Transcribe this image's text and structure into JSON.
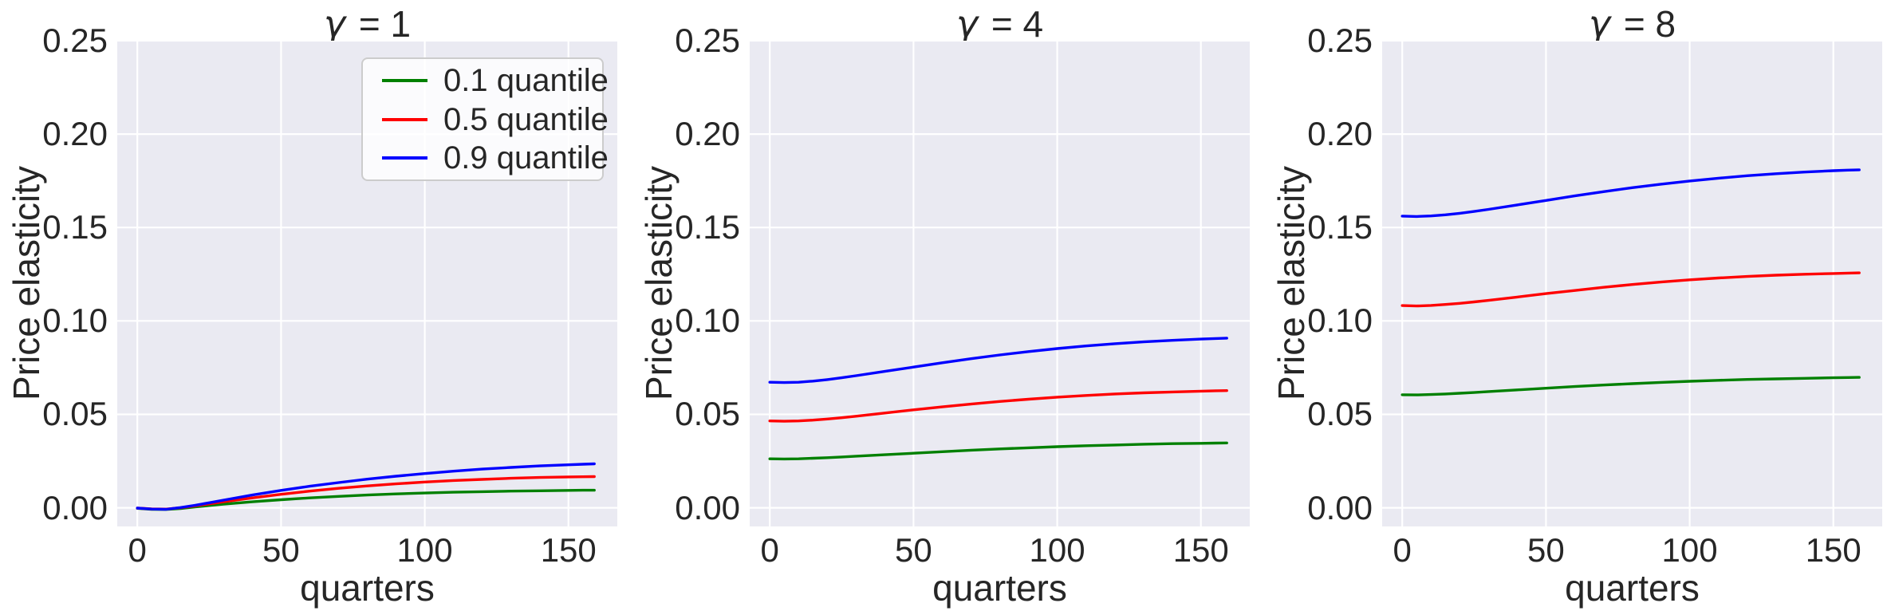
{
  "figure": {
    "background": "#ffffff",
    "plot_background": "#eaeaf2",
    "grid_color": "#ffffff",
    "text_color": "#262626"
  },
  "chart_data": [
    {
      "type": "line",
      "title": "γ = 1",
      "xlabel": "quarters",
      "ylabel": "Price elasticity",
      "xlim": [
        -7,
        167
      ],
      "ylim": [
        -0.01,
        0.25
      ],
      "grid": true,
      "xticks": [
        0,
        50,
        100,
        150
      ],
      "xtick_labels": [
        "0",
        "50",
        "100",
        "150"
      ],
      "yticks": [
        0.0,
        0.05,
        0.1,
        0.15,
        0.2,
        0.25
      ],
      "ytick_labels": [
        "0.00",
        "0.05",
        "0.10",
        "0.15",
        "0.20",
        "0.25"
      ],
      "legend": {
        "visible": true,
        "position": "upper right"
      },
      "x": [
        0,
        5,
        10,
        15,
        20,
        25,
        30,
        40,
        50,
        60,
        70,
        80,
        90,
        100,
        110,
        120,
        130,
        140,
        150,
        155,
        159
      ],
      "series": [
        {
          "name": "0.1 quantile",
          "color": "#008000",
          "values": [
            -0.0003,
            -0.0008,
            -0.0009,
            -0.0004,
            0.0004,
            0.0012,
            0.0019,
            0.0032,
            0.0043,
            0.0053,
            0.0061,
            0.0068,
            0.0074,
            0.0079,
            0.0083,
            0.0086,
            0.0089,
            0.0091,
            0.0093,
            0.0094,
            0.0094
          ]
        },
        {
          "name": "0.5 quantile",
          "color": "#ff0000",
          "values": [
            -0.0002,
            -0.0006,
            -0.0007,
            0.0,
            0.001,
            0.0021,
            0.0032,
            0.0053,
            0.0072,
            0.0089,
            0.0104,
            0.0117,
            0.0128,
            0.0138,
            0.0146,
            0.0152,
            0.0158,
            0.0162,
            0.0165,
            0.0166,
            0.0167
          ]
        },
        {
          "name": "0.9 quantile",
          "color": "#0000ff",
          "values": [
            -0.0002,
            -0.0007,
            -0.0008,
            0.0001,
            0.0013,
            0.0027,
            0.0041,
            0.0068,
            0.0093,
            0.0115,
            0.0135,
            0.0153,
            0.0169,
            0.0183,
            0.0196,
            0.0207,
            0.0216,
            0.0224,
            0.023,
            0.0233,
            0.0235
          ]
        }
      ]
    },
    {
      "type": "line",
      "title": "γ = 4",
      "xlabel": "quarters",
      "ylabel": "Price elasticity",
      "xlim": [
        -7,
        167
      ],
      "ylim": [
        -0.01,
        0.25
      ],
      "grid": true,
      "xticks": [
        0,
        50,
        100,
        150
      ],
      "xtick_labels": [
        "0",
        "50",
        "100",
        "150"
      ],
      "yticks": [
        0.0,
        0.05,
        0.1,
        0.15,
        0.2,
        0.25
      ],
      "ytick_labels": [
        "0.00",
        "0.05",
        "0.10",
        "0.15",
        "0.20",
        "0.25"
      ],
      "legend": {
        "visible": false
      },
      "x": [
        0,
        5,
        10,
        15,
        20,
        25,
        30,
        40,
        50,
        60,
        70,
        80,
        90,
        100,
        110,
        120,
        130,
        140,
        150,
        155,
        159
      ],
      "series": [
        {
          "name": "0.1 quantile",
          "color": "#008000",
          "values": [
            0.0262,
            0.0261,
            0.0262,
            0.0265,
            0.0268,
            0.0272,
            0.0276,
            0.0284,
            0.0292,
            0.03,
            0.0308,
            0.0315,
            0.0321,
            0.0327,
            0.0332,
            0.0336,
            0.034,
            0.0343,
            0.0345,
            0.0346,
            0.0347
          ]
        },
        {
          "name": "0.5 quantile",
          "color": "#ff0000",
          "values": [
            0.0465,
            0.0463,
            0.0465,
            0.0469,
            0.0475,
            0.0482,
            0.049,
            0.0507,
            0.0524,
            0.054,
            0.0555,
            0.0569,
            0.0581,
            0.0592,
            0.0601,
            0.0609,
            0.0615,
            0.062,
            0.0624,
            0.0626,
            0.0627
          ]
        },
        {
          "name": "0.9 quantile",
          "color": "#0000ff",
          "values": [
            0.0672,
            0.067,
            0.0672,
            0.0678,
            0.0686,
            0.0696,
            0.0707,
            0.073,
            0.0753,
            0.0776,
            0.0798,
            0.0818,
            0.0836,
            0.0852,
            0.0866,
            0.0878,
            0.0888,
            0.0896,
            0.0903,
            0.0906,
            0.0908
          ]
        }
      ]
    },
    {
      "type": "line",
      "title": "γ = 8",
      "xlabel": "quarters",
      "ylabel": "Price elasticity",
      "xlim": [
        -7,
        167
      ],
      "ylim": [
        -0.01,
        0.25
      ],
      "grid": true,
      "xticks": [
        0,
        50,
        100,
        150
      ],
      "xtick_labels": [
        "0",
        "50",
        "100",
        "150"
      ],
      "yticks": [
        0.0,
        0.05,
        0.1,
        0.15,
        0.2,
        0.25
      ],
      "ytick_labels": [
        "0.00",
        "0.05",
        "0.10",
        "0.15",
        "0.20",
        "0.25"
      ],
      "legend": {
        "visible": false
      },
      "x": [
        0,
        5,
        10,
        15,
        20,
        25,
        30,
        40,
        50,
        60,
        70,
        80,
        90,
        100,
        110,
        120,
        130,
        140,
        150,
        155,
        159
      ],
      "series": [
        {
          "name": "0.1 quantile",
          "color": "#008000",
          "values": [
            0.0605,
            0.0604,
            0.0606,
            0.0609,
            0.0613,
            0.0617,
            0.0622,
            0.0631,
            0.064,
            0.0649,
            0.0657,
            0.0664,
            0.0671,
            0.0677,
            0.0682,
            0.0687,
            0.069,
            0.0693,
            0.0696,
            0.0697,
            0.0698
          ]
        },
        {
          "name": "0.5 quantile",
          "color": "#ff0000",
          "values": [
            0.1082,
            0.108,
            0.1083,
            0.1088,
            0.1094,
            0.1102,
            0.111,
            0.1128,
            0.1146,
            0.1163,
            0.118,
            0.1195,
            0.1208,
            0.122,
            0.123,
            0.1238,
            0.1245,
            0.125,
            0.1254,
            0.1256,
            0.1257
          ]
        },
        {
          "name": "0.9 quantile",
          "color": "#0000ff",
          "values": [
            0.1561,
            0.1559,
            0.1562,
            0.1568,
            0.1576,
            0.1586,
            0.1597,
            0.1621,
            0.1645,
            0.1669,
            0.1692,
            0.1713,
            0.1732,
            0.1749,
            0.1764,
            0.1777,
            0.1788,
            0.1797,
            0.1804,
            0.1807,
            0.1809
          ]
        }
      ]
    }
  ]
}
